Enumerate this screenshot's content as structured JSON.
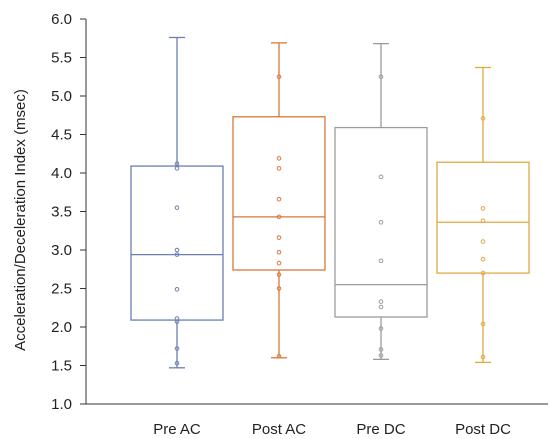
{
  "chart_data": {
    "type": "box",
    "title": "",
    "xlabel": "",
    "ylabel": "Acceleration/Deceleration Index (msec)",
    "ylim": [
      1.0,
      6.0
    ],
    "yticks": [
      "1.0",
      "1.5",
      "2.0",
      "2.5",
      "3.0",
      "3.5",
      "4.0",
      "4.5",
      "5.0",
      "5.5",
      "6.0"
    ],
    "grid": false,
    "categories": [
      "Pre AC",
      "Post AC",
      "Pre DC",
      "Post DC"
    ],
    "boxes": [
      {
        "name": "Pre AC",
        "color": "#6b7fb3",
        "whisker_low": 1.47,
        "q1": 2.09,
        "median": 2.94,
        "q3": 4.09,
        "whisker_high": 5.76,
        "points": [
          1.53,
          1.72,
          2.07,
          2.11,
          2.49,
          2.94,
          3.0,
          3.55,
          4.06,
          4.12
        ]
      },
      {
        "name": "Post AC",
        "color": "#d9773a",
        "whisker_low": 1.6,
        "q1": 2.74,
        "median": 3.43,
        "q3": 4.73,
        "whisker_high": 5.69,
        "points": [
          1.62,
          2.5,
          2.68,
          2.83,
          2.97,
          3.16,
          3.43,
          3.66,
          4.06,
          4.19,
          5.25
        ]
      },
      {
        "name": "Pre DC",
        "color": "#9b9b9b",
        "whisker_low": 1.58,
        "q1": 2.13,
        "median": 2.55,
        "q3": 4.59,
        "whisker_high": 5.68,
        "points": [
          1.63,
          1.71,
          1.98,
          2.26,
          2.33,
          2.86,
          3.36,
          3.95,
          5.25
        ]
      },
      {
        "name": "Post DC",
        "color": "#e0a942",
        "whisker_low": 1.54,
        "q1": 2.7,
        "median": 3.36,
        "q3": 4.14,
        "whisker_high": 5.37,
        "points": [
          1.61,
          2.04,
          2.7,
          2.88,
          3.11,
          3.38,
          3.54,
          4.71
        ]
      }
    ]
  }
}
